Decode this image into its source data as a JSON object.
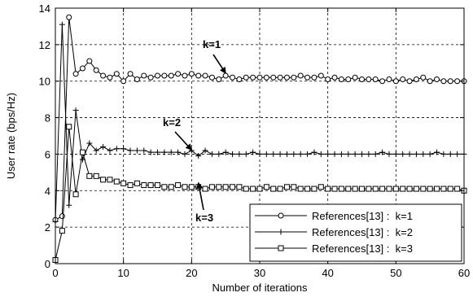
{
  "chart_data": {
    "type": "line",
    "xlabel": "Number of iterations",
    "ylabel": "User rate (bps/Hz)",
    "xlim": [
      0,
      60
    ],
    "ylim": [
      0,
      14
    ],
    "xticks": [
      0,
      10,
      20,
      30,
      40,
      50,
      60
    ],
    "yticks": [
      0,
      2,
      4,
      6,
      8,
      10,
      12,
      14
    ],
    "grid": true,
    "legend_position": "bottom-right",
    "series": [
      {
        "name": "References[13] :  k=1",
        "marker": "circle",
        "x": [
          0,
          1,
          2,
          3,
          4,
          5,
          6,
          7,
          8,
          9,
          10,
          11,
          12,
          13,
          14,
          15,
          16,
          17,
          18,
          19,
          20,
          21,
          22,
          23,
          24,
          25,
          26,
          27,
          28,
          29,
          30,
          31,
          32,
          33,
          34,
          35,
          36,
          37,
          38,
          39,
          40,
          41,
          42,
          43,
          44,
          45,
          46,
          47,
          48,
          49,
          50,
          51,
          52,
          53,
          54,
          55,
          56,
          57,
          58,
          59,
          60
        ],
        "values": [
          2.4,
          2.6,
          13.5,
          10.4,
          10.7,
          11.1,
          10.6,
          10.3,
          10.2,
          10.4,
          10.0,
          10.4,
          10.1,
          10.3,
          10.2,
          10.3,
          10.3,
          10.3,
          10.4,
          10.3,
          10.4,
          10.3,
          10.3,
          10.2,
          10.1,
          10.3,
          10.2,
          10.1,
          10.2,
          10.2,
          10.2,
          10.2,
          10.2,
          10.2,
          10.2,
          10.2,
          10.3,
          10.2,
          10.2,
          10.3,
          10.1,
          10.2,
          10.1,
          10.1,
          10.2,
          10.1,
          10.1,
          10.1,
          10.0,
          10.1,
          10.0,
          10.1,
          10.0,
          10.1,
          10.2,
          10.0,
          10.1,
          10.0,
          10.0,
          10.0,
          10.0
        ]
      },
      {
        "name": "References[13] :  k=2",
        "marker": "plus",
        "x": [
          0,
          1,
          2,
          3,
          4,
          5,
          6,
          7,
          8,
          9,
          10,
          11,
          12,
          13,
          14,
          15,
          16,
          17,
          18,
          19,
          20,
          21,
          22,
          23,
          24,
          25,
          26,
          27,
          28,
          29,
          30,
          31,
          32,
          33,
          34,
          35,
          36,
          37,
          38,
          39,
          40,
          41,
          42,
          43,
          44,
          45,
          46,
          47,
          48,
          49,
          50,
          51,
          52,
          53,
          54,
          55,
          56,
          57,
          58,
          59,
          60
        ],
        "values": [
          2.3,
          13.1,
          3.2,
          8.4,
          5.7,
          6.6,
          6.2,
          6.4,
          6.2,
          6.3,
          6.3,
          6.2,
          6.2,
          6.2,
          6.1,
          6.1,
          6.1,
          6.1,
          6.1,
          6.0,
          6.2,
          5.9,
          6.2,
          6.0,
          6.0,
          6.1,
          6.0,
          6.0,
          6.0,
          6.1,
          6.0,
          6.0,
          6.0,
          6.0,
          6.0,
          6.0,
          6.0,
          6.0,
          6.1,
          6.0,
          6.0,
          6.0,
          6.0,
          6.0,
          6.0,
          6.0,
          6.0,
          6.0,
          6.1,
          6.0,
          6.0,
          6.0,
          6.0,
          6.0,
          6.0,
          6.0,
          6.1,
          6.0,
          6.0,
          6.0,
          6.0
        ]
      },
      {
        "name": "References[13] :  k=3",
        "marker": "square",
        "x": [
          0,
          1,
          2,
          3,
          4,
          5,
          6,
          7,
          8,
          9,
          10,
          11,
          12,
          13,
          14,
          15,
          16,
          17,
          18,
          19,
          20,
          21,
          22,
          23,
          24,
          25,
          26,
          27,
          28,
          29,
          30,
          31,
          32,
          33,
          34,
          35,
          36,
          37,
          38,
          39,
          40,
          41,
          42,
          43,
          44,
          45,
          46,
          47,
          48,
          49,
          50,
          51,
          52,
          53,
          54,
          55,
          56,
          57,
          58,
          59,
          60
        ],
        "values": [
          0.2,
          1.8,
          7.5,
          3.8,
          6.1,
          4.8,
          4.8,
          4.6,
          4.6,
          4.5,
          4.4,
          4.3,
          4.4,
          4.3,
          4.3,
          4.3,
          4.2,
          4.2,
          4.3,
          4.2,
          4.2,
          4.2,
          4.1,
          4.2,
          4.2,
          4.2,
          4.2,
          4.2,
          4.1,
          4.1,
          4.1,
          4.2,
          4.1,
          4.1,
          4.2,
          4.2,
          4.1,
          4.1,
          4.1,
          4.2,
          4.1,
          4.1,
          4.1,
          4.1,
          4.1,
          4.1,
          4.1,
          4.1,
          4.1,
          4.1,
          4.1,
          4.1,
          4.1,
          4.1,
          4.1,
          4.1,
          4.1,
          4.1,
          4.1,
          4.1,
          4.0
        ]
      }
    ],
    "annotations": [
      {
        "text": "k=1",
        "at_x": 25,
        "at_y": 10.3
      },
      {
        "text": "k=2",
        "at_x": 20,
        "at_y": 6.1
      },
      {
        "text": "k=3",
        "at_x": 21,
        "at_y": 4.3
      }
    ]
  }
}
